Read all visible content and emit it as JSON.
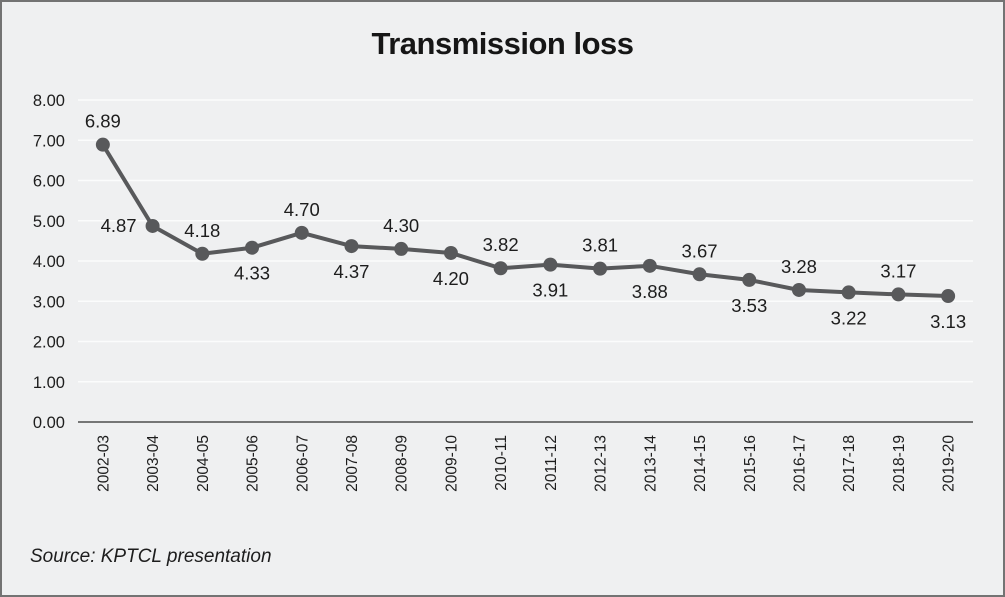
{
  "chart_data": {
    "type": "line",
    "title": "Transmission loss",
    "xlabel": "",
    "ylabel": "",
    "categories": [
      "2002-03",
      "2003-04",
      "2004-05",
      "2005-06",
      "2006-07",
      "2007-08",
      "2008-09",
      "2009-10",
      "2010-11",
      "2011-12",
      "2012-13",
      "2013-14",
      "2014-15",
      "2015-16",
      "2016-17",
      "2017-18",
      "2018-19",
      "2019-20"
    ],
    "series": [
      {
        "name": "Transmission loss",
        "values": [
          6.89,
          4.87,
          4.18,
          4.33,
          4.7,
          4.37,
          4.3,
          4.2,
          3.82,
          3.91,
          3.81,
          3.88,
          3.67,
          3.53,
          3.28,
          3.22,
          3.17,
          3.13
        ],
        "data_labels": [
          "6.89",
          "4.87",
          "4.18",
          "4.33",
          "4.70",
          "4.37",
          "4.30",
          "4.20",
          "3.82",
          "3.91",
          "3.81",
          "3.88",
          "3.67",
          "3.53",
          "3.28",
          "3.22",
          "3.17",
          "3.13"
        ],
        "label_positions": [
          "above",
          "left",
          "above",
          "below",
          "above",
          "below",
          "above",
          "below",
          "above",
          "below",
          "above",
          "below",
          "above",
          "below",
          "above",
          "below",
          "above",
          "below"
        ]
      }
    ],
    "ylim": [
      0,
      8
    ],
    "ytick_step": 1,
    "ytick_labels": [
      "0.00",
      "1.00",
      "2.00",
      "3.00",
      "4.00",
      "5.00",
      "6.00",
      "7.00",
      "8.00"
    ],
    "grid": true,
    "legend_position": "none",
    "x_tick_rotation_deg": -90,
    "source_note": "Source: KPTCL presentation",
    "colors": {
      "series": "#58595b",
      "background": "#eff0f1",
      "gridline": "#fbfcfc",
      "axis": "#4d4d4d",
      "tick_text": "#1d1d1d",
      "data_label_text": "#1d1d1d",
      "title_text": "#161616",
      "frame_border": "#737373"
    }
  }
}
